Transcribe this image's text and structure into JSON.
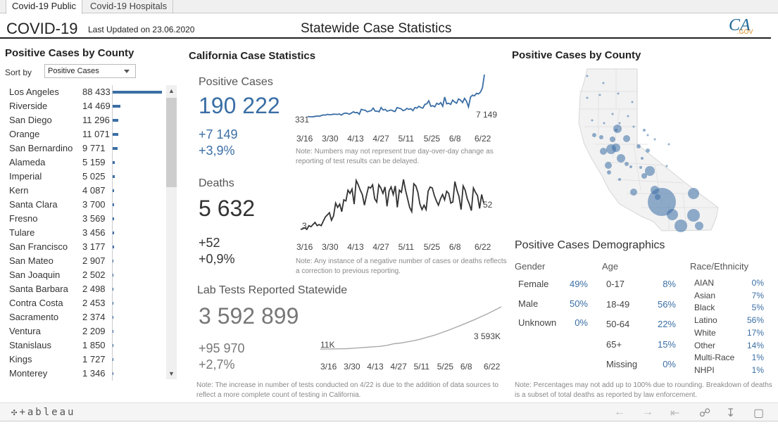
{
  "tabs": [
    {
      "label": "Covid-19 Public",
      "active": true
    },
    {
      "label": "Covid-19 Hospitals",
      "active": false
    }
  ],
  "header": {
    "app_title": "COVID-19",
    "last_updated": "Last Updated on 23.06.2020",
    "center_title": "Statewide Case Statistics",
    "logo_text": "CA",
    "logo_sub": ".GOV"
  },
  "county_panel": {
    "title": "Positive Cases by County",
    "sort_label": "Sort by",
    "sort_value": "Positive Cases",
    "bar_color": "#3a6ea5",
    "rows": [
      {
        "name": "Los Angeles",
        "value": "88 433",
        "n": 88433
      },
      {
        "name": "Riverside",
        "value": "14 469",
        "n": 14469
      },
      {
        "name": "San Diego",
        "value": "11 296",
        "n": 11296
      },
      {
        "name": "Orange",
        "value": "11 071",
        "n": 11071
      },
      {
        "name": "San Bernardino",
        "value": "9 771",
        "n": 9771
      },
      {
        "name": "Alameda",
        "value": "5 159",
        "n": 5159
      },
      {
        "name": "Imperial",
        "value": "5 025",
        "n": 5025
      },
      {
        "name": "Kern",
        "value": "4 087",
        "n": 4087
      },
      {
        "name": "Santa Clara",
        "value": "3 700",
        "n": 3700
      },
      {
        "name": "Fresno",
        "value": "3 569",
        "n": 3569
      },
      {
        "name": "Tulare",
        "value": "3 456",
        "n": 3456
      },
      {
        "name": "San Francisco",
        "value": "3 177",
        "n": 3177
      },
      {
        "name": "San Mateo",
        "value": "2 907",
        "n": 2907
      },
      {
        "name": "San Joaquin",
        "value": "2 502",
        "n": 2502
      },
      {
        "name": "Santa Barbara",
        "value": "2 498",
        "n": 2498
      },
      {
        "name": "Contra Costa",
        "value": "2 453",
        "n": 2453
      },
      {
        "name": "Sacramento",
        "value": "2 374",
        "n": 2374
      },
      {
        "name": "Ventura",
        "value": "2 209",
        "n": 2209
      },
      {
        "name": "Stanislaus",
        "value": "1 850",
        "n": 1850
      },
      {
        "name": "Kings",
        "value": "1 727",
        "n": 1727
      },
      {
        "name": "Monterey",
        "value": "1 346",
        "n": 1346
      }
    ]
  },
  "stats": {
    "title": "California Case Statistics",
    "positive": {
      "label": "Positive Cases",
      "total": "190 222",
      "delta": "+7 149",
      "pct": "+3,9%",
      "start_label": "331",
      "end_label": "7 149",
      "note": "Note: Numbers may not represent true day-over-day change as reporting of test results can be delayed."
    },
    "deaths": {
      "label": "Deaths",
      "total": "5 632",
      "delta": "+52",
      "pct": "+0,9%",
      "start_label": "3",
      "end_label": "52",
      "note": "Note: Any instance of a negative number of cases or deaths reflects a correction to previous reporting."
    },
    "tests": {
      "label": "Lab Tests Reported Statewide",
      "total": "3 592 899",
      "delta": "+95 970",
      "pct": "+2,7%",
      "start_label": "11K",
      "end_label": "3 593K",
      "note": "Note: The increase in number of tests conducted on 4/22 is due to the addition of data sources to reflect a more complete count of testing in California."
    },
    "x_ticks": [
      "3/16",
      "3/30",
      "4/13",
      "4/27",
      "5/11",
      "5/25",
      "6/8",
      "6/22"
    ]
  },
  "chart_data": [
    {
      "type": "line",
      "title": "Positive Cases (daily new)",
      "color": "#3a6ea5",
      "x_ticks": [
        "3/16",
        "3/30",
        "4/13",
        "4/27",
        "5/11",
        "5/25",
        "6/8",
        "6/22"
      ],
      "values": [
        331,
        300,
        290,
        310,
        380,
        420,
        380,
        520,
        600,
        560,
        700,
        620,
        650,
        720,
        700,
        680,
        750,
        560,
        800,
        900,
        850,
        700,
        900,
        1100,
        950,
        1000,
        700,
        1500,
        1400,
        1350,
        1100,
        1200,
        1300,
        1700,
        1200,
        1200,
        1100,
        1800,
        1400,
        1500,
        1200,
        1300,
        1400,
        1250,
        1150,
        1800,
        1700,
        1600,
        1300,
        1400,
        1650,
        1500,
        1600,
        1300,
        1800,
        1700,
        2000,
        1800,
        1700,
        2300,
        2400,
        2900,
        2000,
        2100,
        1900,
        2500,
        2300,
        2600,
        2000,
        3500,
        2400,
        2500,
        2300,
        3000,
        2700,
        2500,
        3200,
        3000,
        2600,
        3300,
        2800,
        1900,
        3500,
        3800,
        3700,
        4100,
        4000,
        4300,
        5000,
        7149
      ],
      "start_label": "331",
      "end_label": "7 149"
    },
    {
      "type": "line",
      "title": "Deaths (daily new)",
      "color": "#333333",
      "x_ticks": [
        "3/16",
        "3/30",
        "4/13",
        "4/27",
        "5/11",
        "5/25",
        "6/8",
        "6/22"
      ],
      "values": [
        3,
        4,
        6,
        3,
        10,
        8,
        12,
        16,
        10,
        12,
        10,
        18,
        26,
        30,
        34,
        20,
        28,
        52,
        44,
        50,
        36,
        58,
        56,
        76,
        70,
        78,
        50,
        94,
        86,
        76,
        68,
        48,
        66,
        82,
        80,
        86,
        60,
        54,
        86,
        80,
        70,
        82,
        46,
        74,
        82,
        68,
        84,
        44,
        76,
        72,
        96,
        76,
        60,
        44,
        36,
        88,
        84,
        72,
        50,
        40,
        48,
        40,
        74,
        82,
        80,
        66,
        56,
        48,
        60,
        68,
        58,
        74,
        70,
        52,
        54,
        92,
        76,
        64,
        40,
        84,
        76,
        60,
        50,
        38,
        80,
        72,
        66,
        42,
        68,
        52
      ],
      "start_label": "3",
      "end_label": "52"
    },
    {
      "type": "line",
      "title": "Lab Tests (cumulative, K)",
      "color": "#aaaaaa",
      "x_ticks": [
        "3/16",
        "3/30",
        "4/13",
        "4/27",
        "5/11",
        "5/25",
        "6/8",
        "6/22"
      ],
      "values": [
        11,
        15,
        20,
        28,
        40,
        80,
        120,
        160,
        200,
        240,
        330,
        460,
        520,
        620,
        720,
        860,
        1020,
        1180,
        1380,
        1580,
        1800,
        2030,
        2260,
        2500,
        2760,
        3020,
        3300,
        3593
      ],
      "start_label": "11K",
      "end_label": "3 593K"
    }
  ],
  "map": {
    "title": "Positive Cases by County",
    "bubble_color": "#3a6ea5"
  },
  "demographics": {
    "title": "Positive Cases Demographics",
    "gender": {
      "header": "Gender",
      "rows": [
        {
          "k": "Female",
          "v": "49%"
        },
        {
          "k": "Male",
          "v": "50%"
        },
        {
          "k": "Unknown",
          "v": "0%"
        }
      ]
    },
    "age": {
      "header": "Age",
      "rows": [
        {
          "k": "0-17",
          "v": "8%"
        },
        {
          "k": "18-49",
          "v": "56%"
        },
        {
          "k": "50-64",
          "v": "22%"
        },
        {
          "k": "65+",
          "v": "15%"
        },
        {
          "k": "Missing",
          "v": "0%"
        }
      ]
    },
    "race": {
      "header": "Race/Ethnicity",
      "rows": [
        {
          "k": "AIAN",
          "v": "0%"
        },
        {
          "k": "Asian",
          "v": "7%"
        },
        {
          "k": "Black",
          "v": "5%"
        },
        {
          "k": "Latino",
          "v": "56%"
        },
        {
          "k": "White",
          "v": "17%"
        },
        {
          "k": "Other",
          "v": "14%"
        },
        {
          "k": "Multi-Race",
          "v": "1%"
        },
        {
          "k": "NHPI",
          "v": "1%"
        }
      ]
    },
    "note": "Note: Percentages may not add up to 100% due to rounding. Breakdown of deaths is a subset of total deaths as reported by law enforcement."
  },
  "footer": {
    "brand": "+ableau",
    "icons": [
      "undo-icon",
      "redo-icon",
      "revert-icon",
      "share-icon",
      "download-icon",
      "fullscreen-icon"
    ]
  }
}
